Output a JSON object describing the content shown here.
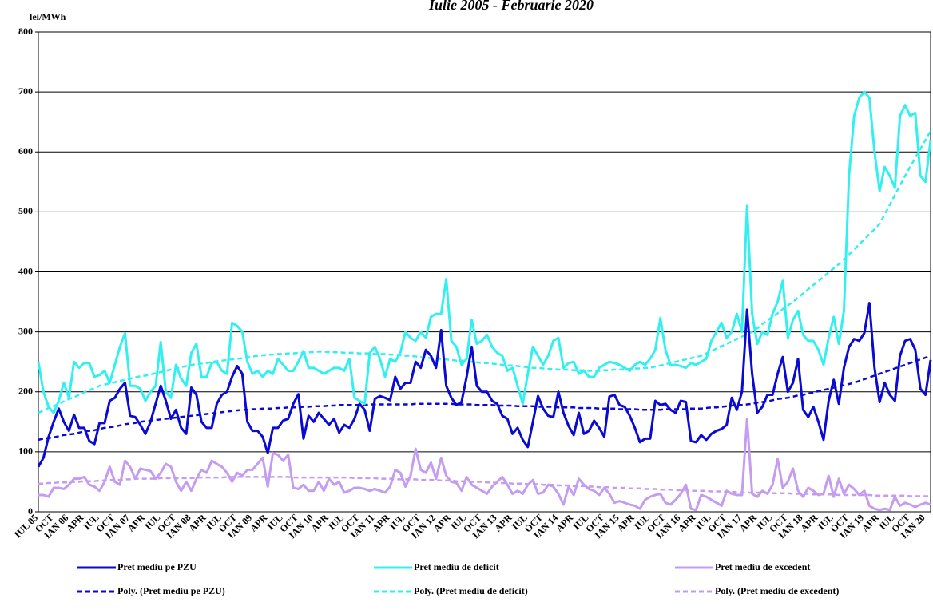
{
  "chart_data": {
    "type": "line",
    "title": "Iulie 2005 - Februarie 2020",
    "y_label": "lei/MWh",
    "ylim": [
      0,
      800
    ],
    "yticks": [
      0,
      100,
      200,
      300,
      400,
      500,
      600,
      700,
      800
    ],
    "grid": true,
    "categories": [
      "IUL 05",
      null,
      null,
      "OCT",
      null,
      null,
      "IAN 06",
      null,
      null,
      "APR",
      null,
      null,
      "IUL",
      null,
      null,
      "OCT",
      null,
      null,
      "IAN 07",
      null,
      null,
      "APR",
      null,
      null,
      "IUL",
      null,
      null,
      "OCT",
      null,
      null,
      "IAN 08",
      null,
      null,
      "APR",
      null,
      null,
      "IUL",
      null,
      null,
      "OCT",
      null,
      null,
      "IAN 09",
      null,
      null,
      "APR",
      null,
      null,
      "IUL",
      null,
      null,
      "OCT",
      null,
      null,
      "IAN 10",
      null,
      null,
      "APR",
      null,
      null,
      "IUL",
      null,
      null,
      "OCT",
      null,
      null,
      "IAN 11",
      null,
      null,
      "APR",
      null,
      null,
      "IUL",
      null,
      null,
      "OCT",
      null,
      null,
      "IAN 12",
      null,
      null,
      "APR",
      null,
      null,
      "IUL",
      null,
      null,
      "OCT",
      null,
      null,
      "IAN 13",
      null,
      null,
      "APR",
      null,
      null,
      "IUL",
      null,
      null,
      "OCT",
      null,
      null,
      "IAN 14",
      null,
      null,
      "APR",
      null,
      null,
      "IUL",
      null,
      null,
      "OCT",
      null,
      null,
      "IAN 15",
      null,
      null,
      "APR",
      null,
      null,
      "IUL",
      null,
      null,
      "OCT",
      null,
      null,
      "IAN 16",
      null,
      null,
      "APR",
      null,
      null,
      "IUL",
      null,
      null,
      "OCT",
      null,
      null,
      "IAN 17",
      null,
      null,
      "APR",
      null,
      null,
      "IUL",
      null,
      null,
      "OCT",
      null,
      null,
      "IAN 18",
      null,
      null,
      "APR",
      null,
      null,
      "IUL",
      null,
      null,
      "OCT",
      null,
      null,
      "IAN 19",
      null,
      null,
      "APR",
      null,
      null,
      "IUL",
      null,
      null,
      "OCT",
      null,
      null,
      "IAN 20",
      null
    ],
    "series": [
      {
        "name": "Pret mediu pe PZU",
        "color": "#0a0ad2",
        "dashed": false,
        "values": [
          75,
          90,
          125,
          150,
          172,
          150,
          135,
          162,
          140,
          140,
          118,
          113,
          148,
          148,
          185,
          190,
          205,
          215,
          160,
          158,
          145,
          130,
          150,
          180,
          210,
          185,
          155,
          170,
          140,
          130,
          207,
          195,
          150,
          140,
          140,
          180,
          195,
          200,
          225,
          243,
          230,
          150,
          135,
          135,
          125,
          98,
          140,
          140,
          152,
          155,
          180,
          196,
          122,
          160,
          150,
          165,
          155,
          145,
          155,
          132,
          145,
          140,
          155,
          180,
          170,
          135,
          188,
          193,
          190,
          186,
          225,
          205,
          215,
          215,
          250,
          240,
          270,
          260,
          240,
          303,
          210,
          190,
          178,
          183,
          225,
          275,
          210,
          200,
          200,
          185,
          180,
          160,
          155,
          130,
          140,
          120,
          108,
          150,
          193,
          172,
          160,
          158,
          200,
          165,
          143,
          128,
          165,
          130,
          135,
          152,
          140,
          125,
          192,
          195,
          178,
          175,
          160,
          140,
          116,
          122,
          122,
          185,
          178,
          180,
          170,
          165,
          185,
          183,
          118,
          116,
          128,
          120,
          130,
          135,
          138,
          145,
          190,
          170,
          200,
          337,
          230,
          165,
          175,
          195,
          195,
          230,
          258,
          200,
          215,
          255,
          170,
          158,
          175,
          150,
          120,
          185,
          220,
          180,
          240,
          275,
          288,
          285,
          298,
          348,
          240,
          183,
          215,
          195,
          185,
          260,
          285,
          288,
          270,
          205,
          195,
          253
        ]
      },
      {
        "name": "Pret mediu de deficit",
        "color": "#33f0f0",
        "dashed": false,
        "values": [
          250,
          200,
          175,
          165,
          185,
          215,
          190,
          250,
          240,
          248,
          248,
          225,
          228,
          235,
          215,
          245,
          275,
          298,
          210,
          210,
          205,
          185,
          200,
          210,
          283,
          200,
          190,
          245,
          222,
          210,
          265,
          280,
          225,
          225,
          248,
          250,
          235,
          230,
          315,
          310,
          300,
          250,
          230,
          235,
          225,
          235,
          230,
          255,
          245,
          235,
          235,
          250,
          268,
          240,
          240,
          235,
          230,
          235,
          240,
          240,
          235,
          255,
          190,
          185,
          180,
          265,
          275,
          255,
          225,
          255,
          250,
          265,
          300,
          290,
          285,
          300,
          290,
          325,
          330,
          330,
          388,
          285,
          275,
          245,
          255,
          320,
          280,
          285,
          295,
          275,
          265,
          260,
          235,
          240,
          210,
          180,
          230,
          275,
          260,
          245,
          260,
          285,
          290,
          240,
          248,
          250,
          230,
          235,
          225,
          225,
          240,
          245,
          250,
          248,
          245,
          240,
          235,
          245,
          250,
          245,
          255,
          270,
          323,
          270,
          245,
          245,
          243,
          240,
          248,
          245,
          250,
          255,
          285,
          300,
          315,
          290,
          300,
          330,
          300,
          510,
          330,
          280,
          300,
          295,
          330,
          350,
          385,
          290,
          320,
          335,
          295,
          285,
          285,
          270,
          245,
          290,
          325,
          280,
          335,
          560,
          660,
          690,
          700,
          690,
          600,
          535,
          575,
          560,
          540,
          660,
          678,
          660,
          665,
          560,
          550,
          620
        ]
      },
      {
        "name": "Pret mediu de excedent",
        "color": "#c49cf0",
        "dashed": false,
        "values": [
          28,
          28,
          25,
          40,
          40,
          38,
          45,
          55,
          55,
          58,
          45,
          42,
          35,
          50,
          75,
          50,
          45,
          85,
          75,
          55,
          72,
          70,
          68,
          55,
          65,
          80,
          75,
          50,
          35,
          50,
          35,
          55,
          70,
          65,
          85,
          80,
          75,
          65,
          50,
          65,
          60,
          70,
          70,
          80,
          90,
          42,
          98,
          95,
          85,
          95,
          40,
          38,
          45,
          35,
          35,
          50,
          35,
          55,
          45,
          50,
          32,
          35,
          40,
          40,
          38,
          35,
          38,
          35,
          32,
          42,
          70,
          65,
          42,
          60,
          105,
          70,
          65,
          82,
          55,
          90,
          60,
          50,
          48,
          35,
          58,
          45,
          40,
          35,
          30,
          42,
          50,
          58,
          45,
          30,
          35,
          30,
          45,
          53,
          30,
          32,
          45,
          42,
          30,
          12,
          42,
          28,
          55,
          45,
          38,
          35,
          28,
          40,
          30,
          15,
          18,
          15,
          12,
          10,
          5,
          20,
          25,
          28,
          30,
          15,
          12,
          20,
          30,
          45,
          5,
          3,
          28,
          25,
          20,
          15,
          10,
          35,
          30,
          28,
          28,
          155,
          30,
          25,
          35,
          30,
          45,
          88,
          40,
          50,
          72,
          35,
          25,
          40,
          35,
          28,
          30,
          60,
          25,
          55,
          30,
          45,
          38,
          28,
          35,
          10,
          5,
          3,
          5,
          3,
          25,
          10,
          15,
          12,
          8,
          12,
          15,
          12
        ]
      },
      {
        "name": "Poly. (Pret mediu pe PZU)",
        "color": "#0a0ad2",
        "dashed": true,
        "values": [
          120,
          122,
          123,
          124,
          126,
          128,
          129,
          130,
          132,
          134,
          135,
          136,
          138,
          140,
          141,
          142,
          144,
          146,
          147,
          148,
          150,
          151,
          152,
          153,
          154,
          155,
          156,
          157,
          158,
          159,
          160,
          161,
          162,
          163,
          164,
          165,
          166,
          167,
          168,
          169,
          170,
          170,
          171,
          171,
          172,
          172,
          172,
          173,
          173,
          174,
          174,
          174,
          175,
          175,
          176,
          176,
          176,
          177,
          177,
          178,
          178,
          178,
          178,
          178,
          178,
          179,
          179,
          179,
          179,
          179,
          179,
          179,
          179,
          179,
          180,
          180,
          180,
          180,
          180,
          180,
          180,
          180,
          179,
          179,
          179,
          179,
          178,
          178,
          178,
          178,
          177,
          177,
          177,
          177,
          176,
          176,
          176,
          176,
          175,
          175,
          175,
          175,
          174,
          174,
          174,
          174,
          173,
          173,
          173,
          173,
          172,
          172,
          172,
          172,
          171,
          171,
          171,
          171,
          170,
          170,
          170,
          170,
          170,
          171,
          171,
          171,
          171,
          171,
          172,
          172,
          172,
          173,
          174,
          174,
          175,
          176,
          177,
          178,
          178,
          179,
          180,
          182,
          183,
          184,
          186,
          188,
          189,
          190,
          192,
          194,
          195,
          197,
          199,
          201,
          203,
          205,
          207,
          209,
          211,
          213,
          215,
          218,
          221,
          224,
          227,
          230,
          233,
          236,
          239,
          242,
          245,
          248,
          251,
          254,
          257,
          260
        ]
      },
      {
        "name": "Poly. (Pret mediu de deficit)",
        "color": "#33f0f0",
        "dashed": true,
        "values": [
          165,
          169,
          173,
          176,
          180,
          184,
          188,
          191,
          195,
          199,
          203,
          206,
          210,
          212,
          214,
          216,
          218,
          220,
          222,
          224,
          226,
          227,
          229,
          231,
          233,
          235,
          237,
          239,
          241,
          243,
          245,
          246,
          247,
          248,
          250,
          251,
          252,
          253,
          254,
          255,
          256,
          257,
          259,
          260,
          261,
          262,
          262,
          263,
          263,
          264,
          264,
          265,
          265,
          266,
          266,
          267,
          267,
          266,
          266,
          266,
          265,
          265,
          265,
          264,
          264,
          264,
          263,
          263,
          263,
          262,
          262,
          261,
          260,
          260,
          259,
          258,
          257,
          256,
          256,
          255,
          254,
          253,
          252,
          252,
          251,
          250,
          249,
          248,
          248,
          247,
          246,
          245,
          244,
          244,
          243,
          242,
          241,
          240,
          240,
          239,
          238,
          238,
          237,
          237,
          237,
          236,
          236,
          236,
          235,
          235,
          235,
          236,
          236,
          237,
          237,
          238,
          238,
          239,
          239,
          240,
          240,
          242,
          244,
          246,
          248,
          250,
          252,
          254,
          256,
          258,
          260,
          264,
          268,
          272,
          276,
          280,
          284,
          288,
          292,
          296,
          300,
          306,
          313,
          319,
          325,
          331,
          338,
          344,
          350,
          357,
          364,
          371,
          378,
          385,
          392,
          399,
          406,
          413,
          420,
          429,
          437,
          446,
          454,
          463,
          471,
          480,
          496,
          512,
          528,
          544,
          560,
          575,
          590,
          605,
          620,
          635
        ]
      },
      {
        "name": "Poly. (Pret mediu de excedent)",
        "color": "#c49cf0",
        "dashed": true,
        "values": [
          47,
          47,
          48,
          48,
          49,
          49,
          49,
          50,
          50,
          51,
          51,
          51,
          52,
          52,
          53,
          53,
          53,
          54,
          54,
          55,
          55,
          55,
          55,
          55,
          56,
          56,
          56,
          56,
          56,
          56,
          56,
          57,
          57,
          57,
          57,
          57,
          57,
          58,
          58,
          58,
          58,
          58,
          58,
          58,
          58,
          58,
          58,
          58,
          58,
          58,
          57,
          57,
          57,
          57,
          57,
          57,
          57,
          57,
          57,
          57,
          57,
          57,
          56,
          56,
          56,
          56,
          56,
          55,
          55,
          55,
          54,
          54,
          54,
          54,
          54,
          53,
          53,
          53,
          53,
          52,
          52,
          52,
          51,
          51,
          51,
          50,
          50,
          50,
          49,
          49,
          48,
          48,
          48,
          47,
          47,
          47,
          46,
          46,
          46,
          45,
          45,
          45,
          44,
          44,
          44,
          43,
          43,
          43,
          42,
          42,
          41,
          41,
          41,
          40,
          40,
          40,
          39,
          39,
          39,
          38,
          38,
          38,
          37,
          37,
          37,
          36,
          36,
          36,
          35,
          35,
          35,
          35,
          34,
          34,
          34,
          33,
          33,
          33,
          32,
          32,
          32,
          32,
          32,
          31,
          31,
          31,
          31,
          31,
          30,
          30,
          30,
          30,
          29,
          29,
          29,
          29,
          29,
          28,
          28,
          28,
          28,
          28,
          28,
          28,
          27,
          27,
          27,
          27,
          27,
          27,
          27,
          26,
          26,
          26,
          26,
          26
        ]
      }
    ]
  }
}
